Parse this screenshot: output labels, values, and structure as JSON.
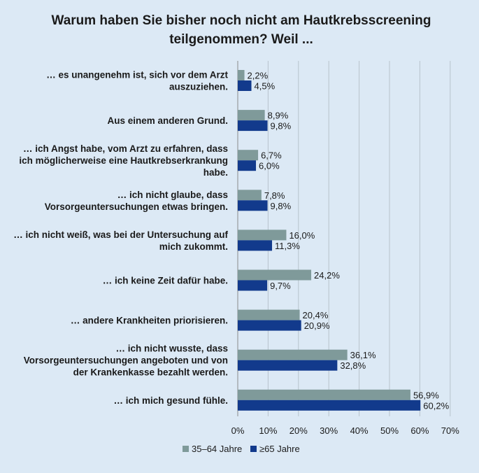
{
  "chart_data": {
    "type": "bar",
    "orientation": "horizontal",
    "title_line1": "Warum haben Sie bisher noch nicht am Hautkrebsscreening",
    "title_line2": "teilgenommen? Weil ...",
    "categories": [
      [
        "… es unangenehm ist, sich vor dem Arzt",
        "auszuziehen."
      ],
      [
        "Aus einem anderen Grund."
      ],
      [
        "… ich Angst habe, vom Arzt zu erfahren, dass",
        "ich möglicherweise eine Hautkrebserkrankung",
        "habe."
      ],
      [
        "… ich nicht glaube, dass",
        "Vorsorgeuntersuchungen etwas bringen."
      ],
      [
        "… ich nicht weiß, was bei der Untersuchung auf",
        "mich zukommt."
      ],
      [
        "… ich keine Zeit dafür habe."
      ],
      [
        "… andere Krankheiten priorisieren."
      ],
      [
        "… ich nicht wusste, dass",
        "Vorsorgeuntersuchungen angeboten und von",
        "der Krankenkasse bezahlt werden."
      ],
      [
        "… ich mich gesund fühle."
      ]
    ],
    "series": [
      {
        "name": "35–64 Jahre",
        "color": "#7f9a9a",
        "values": [
          2.2,
          8.9,
          6.7,
          7.8,
          16.0,
          24.2,
          20.4,
          36.1,
          56.9
        ],
        "labels": [
          "2,2%",
          "8,9%",
          "6,7%",
          "7,8%",
          "16,0%",
          "24,2%",
          "20,4%",
          "36,1%",
          "56,9%"
        ]
      },
      {
        "name": "≥65 Jahre",
        "color": "#123a8c",
        "values": [
          4.5,
          9.8,
          6.0,
          9.8,
          11.3,
          9.7,
          20.9,
          32.8,
          60.2
        ],
        "labels": [
          "4,5%",
          "9,8%",
          "6,0%",
          "9,8%",
          "11,3%",
          "9,7%",
          "20,9%",
          "32,8%",
          "60,2%"
        ]
      }
    ],
    "xlim": [
      0,
      70
    ],
    "xticks": [
      "0%",
      "10%",
      "20%",
      "30%",
      "40%",
      "50%",
      "60%",
      "70%"
    ],
    "grid": true,
    "legend_position": "bottom"
  }
}
